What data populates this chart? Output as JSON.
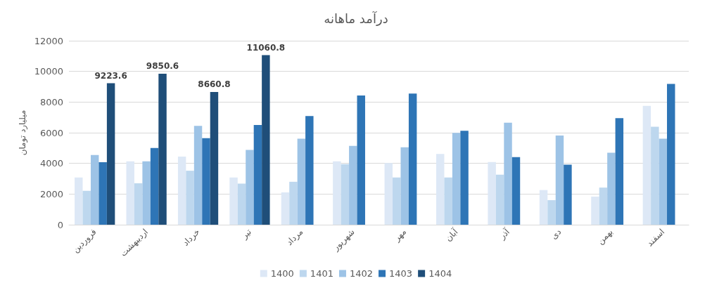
{
  "chart_data": {
    "type": "bar",
    "title": "درآمد ماهانه",
    "ylabel": "میلیارد تومان",
    "categories": [
      "فروردین",
      "اردیبهشت",
      "خرداد",
      "تیر",
      "مرداد",
      "شهریور",
      "مهر",
      "آبان",
      "آذر",
      "دی",
      "بهمن",
      "اسفند"
    ],
    "series": [
      {
        "name": "1400",
        "color": "#dde8f6",
        "values": [
          3080,
          4130,
          4440,
          3080,
          2110,
          4130,
          4020,
          4620,
          4090,
          2260,
          1830,
          7750
        ]
      },
      {
        "name": "1401",
        "color": "#bdd7ee",
        "values": [
          2210,
          2700,
          3520,
          2680,
          2800,
          3950,
          3080,
          3080,
          3260,
          1600,
          2420,
          6390
        ]
      },
      {
        "name": "1402",
        "color": "#9dc3e6",
        "values": [
          4550,
          4130,
          6450,
          4880,
          5610,
          5140,
          5050,
          5990,
          6650,
          5820,
          4690,
          5610
        ]
      },
      {
        "name": "1403",
        "color": "#2e75b6",
        "values": [
          4080,
          5000,
          5640,
          6500,
          7090,
          8430,
          8550,
          6130,
          4410,
          3920,
          6950,
          9180
        ]
      },
      {
        "name": "1404",
        "color": "#1f4e79",
        "values": [
          9223.6,
          9850.6,
          8660.8,
          11060.8,
          null,
          null,
          null,
          null,
          null,
          null,
          null,
          null
        ],
        "value_labels": [
          "9223.6",
          "9850.6",
          "8660.8",
          "11060.8",
          null,
          null,
          null,
          null,
          null,
          null,
          null,
          null
        ]
      }
    ],
    "ylim": [
      0,
      12000
    ],
    "yticks": [
      0,
      2000,
      4000,
      6000,
      8000,
      10000,
      12000
    ],
    "grid": "y",
    "legend": "bottom"
  }
}
